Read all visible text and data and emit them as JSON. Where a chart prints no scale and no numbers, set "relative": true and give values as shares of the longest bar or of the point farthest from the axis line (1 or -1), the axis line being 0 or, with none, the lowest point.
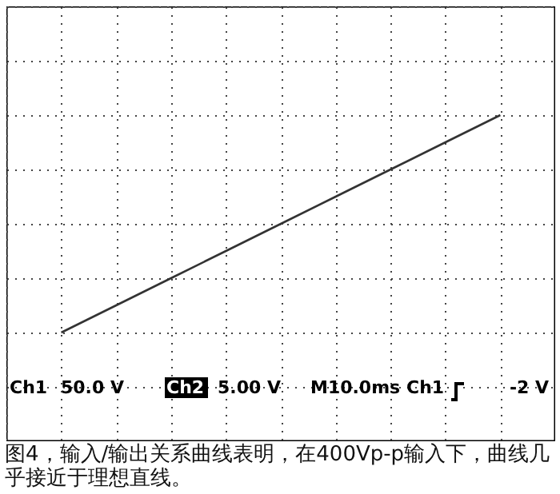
{
  "chart_data": {
    "type": "line",
    "relative": true,
    "categories": [
      null,
      null,
      null,
      null,
      null,
      null,
      null,
      null,
      null,
      null,
      null
    ],
    "values": [
      null,
      -1,
      -0.75,
      -0.5,
      -0.25,
      0,
      0.25,
      0.5,
      0.75,
      1,
      null
    ],
    "color": "#333333",
    "grid": true,
    "marker": "none",
    "line_style": "solid",
    "annotations": [
      "Ch1",
      "50.0 V",
      "Ch2",
      "5.00 V",
      "M10.0ms",
      "Ch1",
      "-2 V",
      "图4，输入/输出关系曲线表明，在400Vp-p输入下，曲线几乎接近于理想直线。"
    ]
  }
}
